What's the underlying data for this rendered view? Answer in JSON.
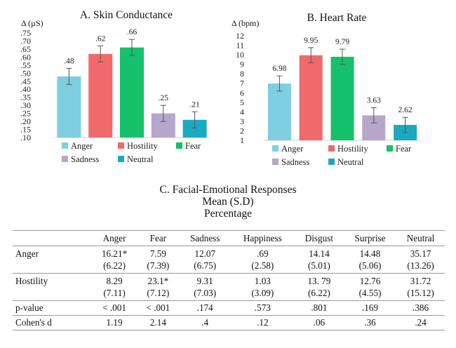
{
  "chart_data": [
    {
      "type": "bar",
      "title": "A. Skin Conductance",
      "ylabel": "Δ (µS)",
      "ylim": [
        0.1,
        0.75
      ],
      "yticks": [
        ".75",
        ".70",
        ".65",
        ".60",
        ".55",
        ".50",
        ".45",
        ".40",
        ".35",
        ".30",
        ".25",
        ".20",
        ".15",
        ".10"
      ],
      "categories": [
        "Anger",
        "Hostility",
        "Fear",
        "Sadness",
        "Neutral"
      ],
      "values": [
        0.48,
        0.62,
        0.66,
        0.25,
        0.21
      ],
      "errors": [
        0.05,
        0.05,
        0.05,
        0.05,
        0.05
      ],
      "labels": [
        ".48",
        ".62",
        ".66",
        ".25",
        ".21"
      ],
      "colors": [
        "#7ecfdf",
        "#f06a6c",
        "#15c16a",
        "#b7a6cc",
        "#1ba9c1"
      ],
      "legend": [
        "Anger",
        "Hostility",
        "Fear",
        "Sadness",
        "Neutral"
      ],
      "legend_position": "bottom",
      "grid": false
    },
    {
      "type": "bar",
      "title": "B. Heart Rate",
      "ylabel": "Δ (bpm)",
      "ylim": [
        1,
        12
      ],
      "yticks": [
        "12",
        "11",
        "10",
        "9",
        "8",
        "7",
        "6",
        "5",
        "4",
        "3",
        "2",
        "1"
      ],
      "categories": [
        "Anger",
        "Hostility",
        "Fear",
        "Sadness",
        "Neutral"
      ],
      "values": [
        6.98,
        9.95,
        9.79,
        3.63,
        2.62
      ],
      "errors": [
        0.8,
        0.8,
        0.8,
        0.8,
        0.8
      ],
      "labels": [
        "6.98",
        "9.95",
        "9.79",
        "3.63",
        "2.62"
      ],
      "colors": [
        "#7ecfdf",
        "#f06a6c",
        "#15c16a",
        "#b7a6cc",
        "#1ba9c1"
      ],
      "legend": [
        "Anger",
        "Hostility",
        "Fear",
        "Sadness",
        "Neutral"
      ],
      "legend_position": "bottom",
      "grid": false
    },
    {
      "type": "table",
      "title_lines": [
        "C. Facial-Emotional Responses",
        "Mean (S.D)",
        "Percentage"
      ],
      "columns": [
        "",
        "Anger",
        "Fear",
        "Sadness",
        "Happiness",
        "Disgust",
        "Surprise",
        "Neutral"
      ],
      "rows": [
        {
          "label": "Anger",
          "means": [
            "16.21*",
            "7.59",
            "12.07",
            ".69",
            "14.14",
            "14.48",
            "35.17"
          ],
          "sds": [
            "(6.22)",
            "(7.39)",
            "(6.75)",
            "(2.58)",
            "(5.01)",
            "(5.06)",
            "(13.26)"
          ]
        },
        {
          "label": "Hostility",
          "means": [
            "8.29",
            "23.1*",
            "9.31",
            "1.03",
            "13. 79",
            "12.76",
            "31.72"
          ],
          "sds": [
            "(7.11)",
            "(7.12)",
            "(7.03)",
            "(3.09)",
            "(6.22)",
            "(4.55)",
            "(15.12)"
          ]
        },
        {
          "label": "p-value",
          "values": [
            "< .001",
            "< .001",
            ".174",
            ".573",
            ".801",
            ".169",
            ".386"
          ]
        },
        {
          "label": "Cohen's d",
          "values": [
            "1.19",
            "2.14",
            ".4",
            ".12",
            ".06",
            ".36",
            ".24"
          ]
        }
      ]
    }
  ]
}
